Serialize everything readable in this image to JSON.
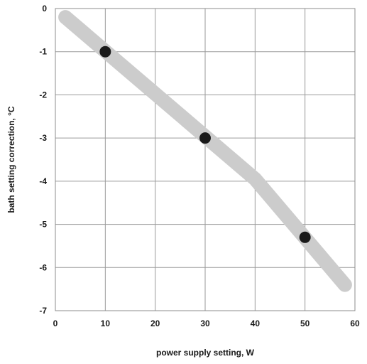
{
  "chart_data": {
    "type": "line",
    "title": "",
    "xlabel": "power supply setting, W",
    "ylabel": "bath setting correction, °C",
    "xlim": [
      0,
      60
    ],
    "ylim": [
      -7,
      0
    ],
    "x_ticks": [
      0,
      10,
      20,
      30,
      40,
      50,
      60
    ],
    "y_ticks": [
      0,
      -1,
      -2,
      -3,
      -4,
      -5,
      -6,
      -7
    ],
    "grid": true,
    "legend": "none",
    "series": [
      {
        "kind": "trend-band",
        "color": "#cccccc",
        "x": [
          2,
          40,
          58
        ],
        "y": [
          -0.2,
          -3.95,
          -6.4
        ]
      },
      {
        "kind": "points",
        "color": "#1a1a1a",
        "x": [
          10,
          30,
          50
        ],
        "y": [
          -1,
          -3,
          -5.3
        ]
      }
    ]
  }
}
